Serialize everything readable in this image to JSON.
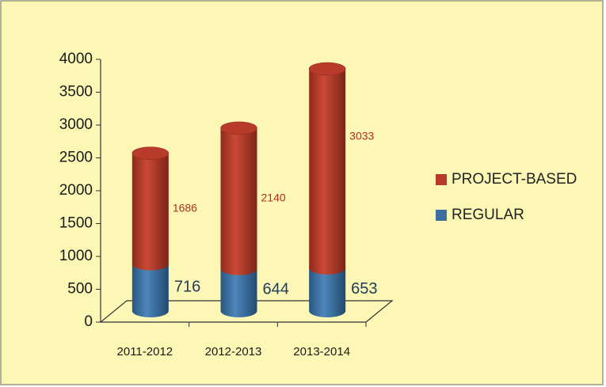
{
  "chart_data": {
    "type": "bar",
    "stacked": true,
    "categories": [
      "2011-2012",
      "2012-2013",
      "2013-2014"
    ],
    "series": [
      {
        "name": "REGULAR",
        "color": "#3b6fa0",
        "values": [
          716,
          644,
          653
        ]
      },
      {
        "name": "PROJECT-BASED",
        "color": "#b83a2a",
        "values": [
          1686,
          2140,
          3033
        ]
      }
    ],
    "ylim": [
      0,
      4000
    ],
    "yticks": [
      0,
      500,
      1000,
      1500,
      2000,
      2500,
      3000,
      3500,
      4000
    ],
    "legend": "right"
  }
}
